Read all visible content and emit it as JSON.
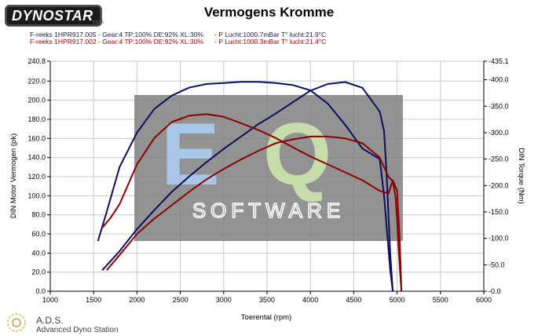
{
  "header": {
    "logo_text": "DYNOSTAR",
    "logo_version": "2.63 A",
    "title": "Vermogens Kromme",
    "run1": "F-reeks 1HPR917.005 - Gear:4 TP:100% DE:92% XL:30%      - P Lucht:1000.7mBar T° lucht:21.9°C",
    "run2": "F-reeks 1HPR917.002 - Gear:4 TP:100% DE:92% XL:30%      - P Lucht:1000.3mBar T° lucht:21.4°C"
  },
  "footer": {
    "ads": "A.D.S.",
    "ads_full": "Advanced Dyno Station"
  },
  "watermark": {
    "big": "EQ",
    "small": "SOFTWARE",
    "colors": {
      "box": "#808080",
      "e": "#a8c6e6",
      "q": "#c6dcaa"
    }
  },
  "colors": {
    "run1": "#0d0d5c",
    "run2": "#8a0000",
    "grid": "#c8c8c8"
  },
  "chart_data": {
    "type": "line",
    "title": "Vermogens Kromme",
    "xlabel": "Toerental (rpm)",
    "ylabel_left": "DIN Motor Vermogen (pk)",
    "ylabel_right": "DIN Torque (Nm)",
    "xlim": [
      1000,
      6000
    ],
    "xticks": [
      "1000",
      "1500",
      "2000",
      "2500",
      "3000",
      "3500",
      "4000",
      "4500",
      "5000",
      "5500",
      "6000"
    ],
    "ylim_left": [
      0,
      240.8
    ],
    "yticks_left": [
      "0.0",
      "20.0",
      "40.0",
      "60.0",
      "80.0",
      "100.0",
      "120.0",
      "140.0",
      "160.0",
      "180.0",
      "200.0",
      "220.0",
      "240.8"
    ],
    "ylim_right": [
      0,
      435.1
    ],
    "yticks_right": [
      "-0.0",
      "-50.0",
      "-100.0",
      "-150.0",
      "-200.0",
      "-250.0",
      "-300.0",
      "-350.0",
      "-400.0",
      "-435.1"
    ],
    "grid": true,
    "series": [
      {
        "axis": "left",
        "run": 1,
        "x": [
          1600,
          1800,
          2000,
          2200,
          2400,
          2600,
          2800,
          3000,
          3200,
          3400,
          3600,
          3800,
          4000,
          4200,
          4400,
          4600,
          4800,
          4850,
          4880,
          4900,
          4920,
          4950
        ],
        "y": [
          22,
          42,
          65,
          85,
          104,
          120,
          135,
          149,
          162,
          175,
          186,
          198,
          210,
          217,
          219,
          213,
          188,
          168,
          120,
          80,
          40,
          0
        ]
      },
      {
        "axis": "right",
        "run": 1,
        "x": [
          1550,
          1650,
          1800,
          2000,
          2200,
          2400,
          2600,
          2800,
          3000,
          3200,
          3400,
          3600,
          3800,
          4000,
          4200,
          4400,
          4600,
          4800,
          4850,
          4880,
          4900,
          4920,
          4950
        ],
        "y": [
          95,
          150,
          235,
          300,
          345,
          370,
          385,
          392,
          394,
          396,
          396,
          394,
          390,
          380,
          355,
          315,
          270,
          250,
          180,
          120,
          80,
          40,
          0
        ]
      },
      {
        "axis": "left",
        "run": 2,
        "x": [
          1650,
          1800,
          2000,
          2200,
          2400,
          2600,
          2800,
          3000,
          3200,
          3400,
          3600,
          3800,
          4000,
          4200,
          4400,
          4600,
          4800,
          4900,
          4950,
          4980,
          5000,
          5020,
          5050
        ],
        "y": [
          22,
          38,
          60,
          76,
          90,
          104,
          117,
          128,
          138,
          147,
          155,
          159,
          162,
          162,
          160,
          155,
          140,
          120,
          115,
          100,
          75,
          40,
          0
        ]
      },
      {
        "axis": "right",
        "run": 2,
        "x": [
          1600,
          1700,
          1800,
          2000,
          2200,
          2400,
          2600,
          2800,
          3000,
          3200,
          3400,
          3600,
          3800,
          4000,
          4200,
          4400,
          4600,
          4800,
          4900,
          4950,
          5000,
          5030,
          5050
        ],
        "y": [
          120,
          140,
          165,
          240,
          290,
          320,
          332,
          335,
          330,
          318,
          305,
          290,
          272,
          255,
          240,
          225,
          210,
          190,
          185,
          210,
          190,
          100,
          0
        ]
      }
    ]
  }
}
